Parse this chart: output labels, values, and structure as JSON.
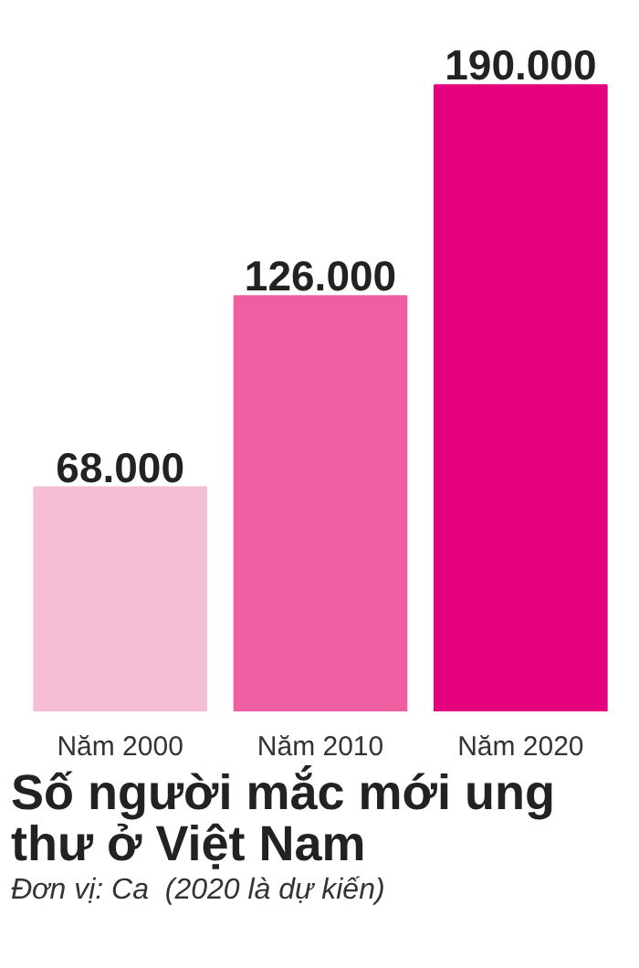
{
  "chart_data": {
    "type": "bar",
    "title": "Số người mắc mới ung thư ở Việt Nam",
    "annotations": [
      "Đơn vị: Ca  (2020 là dự kiến)"
    ],
    "categories": [
      "Năm 2000",
      "Năm 2010",
      "Năm 2020"
    ],
    "values": [
      68000,
      126000,
      190000
    ],
    "colors": [
      "#f6bdd6",
      "#ee5ea0",
      "#e5007e"
    ],
    "value_labels": [
      "68.000",
      "126.000",
      "190.000"
    ],
    "grid": false
  }
}
